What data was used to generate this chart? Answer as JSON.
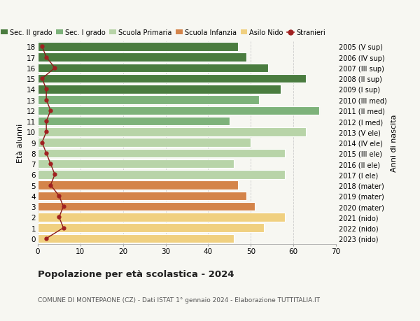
{
  "ages": [
    18,
    17,
    16,
    15,
    14,
    13,
    12,
    11,
    10,
    9,
    8,
    7,
    6,
    5,
    4,
    3,
    2,
    1,
    0
  ],
  "bar_values": [
    47,
    49,
    54,
    63,
    57,
    52,
    66,
    45,
    63,
    50,
    58,
    46,
    58,
    47,
    49,
    51,
    58,
    53,
    46
  ],
  "stranieri_values": [
    1,
    2,
    4,
    1,
    2,
    2,
    3,
    2,
    2,
    1,
    2,
    3,
    4,
    3,
    5,
    6,
    5,
    6,
    2
  ],
  "right_labels": [
    "2005 (V sup)",
    "2006 (IV sup)",
    "2007 (III sup)",
    "2008 (II sup)",
    "2009 (I sup)",
    "2010 (III med)",
    "2011 (II med)",
    "2012 (I med)",
    "2013 (V ele)",
    "2014 (IV ele)",
    "2015 (III ele)",
    "2016 (II ele)",
    "2017 (I ele)",
    "2018 (mater)",
    "2019 (mater)",
    "2020 (mater)",
    "2021 (nido)",
    "2022 (nido)",
    "2023 (nido)"
  ],
  "bar_colors": [
    "#4a7c3f",
    "#4a7c3f",
    "#4a7c3f",
    "#4a7c3f",
    "#4a7c3f",
    "#7db27a",
    "#7db27a",
    "#7db27a",
    "#b8d4a8",
    "#b8d4a8",
    "#b8d4a8",
    "#b8d4a8",
    "#b8d4a8",
    "#d4844a",
    "#d4844a",
    "#d4844a",
    "#f0d080",
    "#f0d080",
    "#f0d080"
  ],
  "legend_labels": [
    "Sec. II grado",
    "Sec. I grado",
    "Scuola Primaria",
    "Scuola Infanzia",
    "Asilo Nido",
    "Stranieri"
  ],
  "legend_colors": [
    "#4a7c3f",
    "#7db27a",
    "#b8d4a8",
    "#d4844a",
    "#f0d080",
    "#a02020"
  ],
  "title": "Popolazione per età scolastica - 2024",
  "subtitle": "COMUNE DI MONTEPAONE (CZ) - Dati ISTAT 1° gennaio 2024 - Elaborazione TUTTITALIA.IT",
  "ylabel_left": "Età alunni",
  "ylabel_right": "Anni di nascita",
  "xlim": [
    0,
    70
  ],
  "bg_color": "#f7f7f2"
}
